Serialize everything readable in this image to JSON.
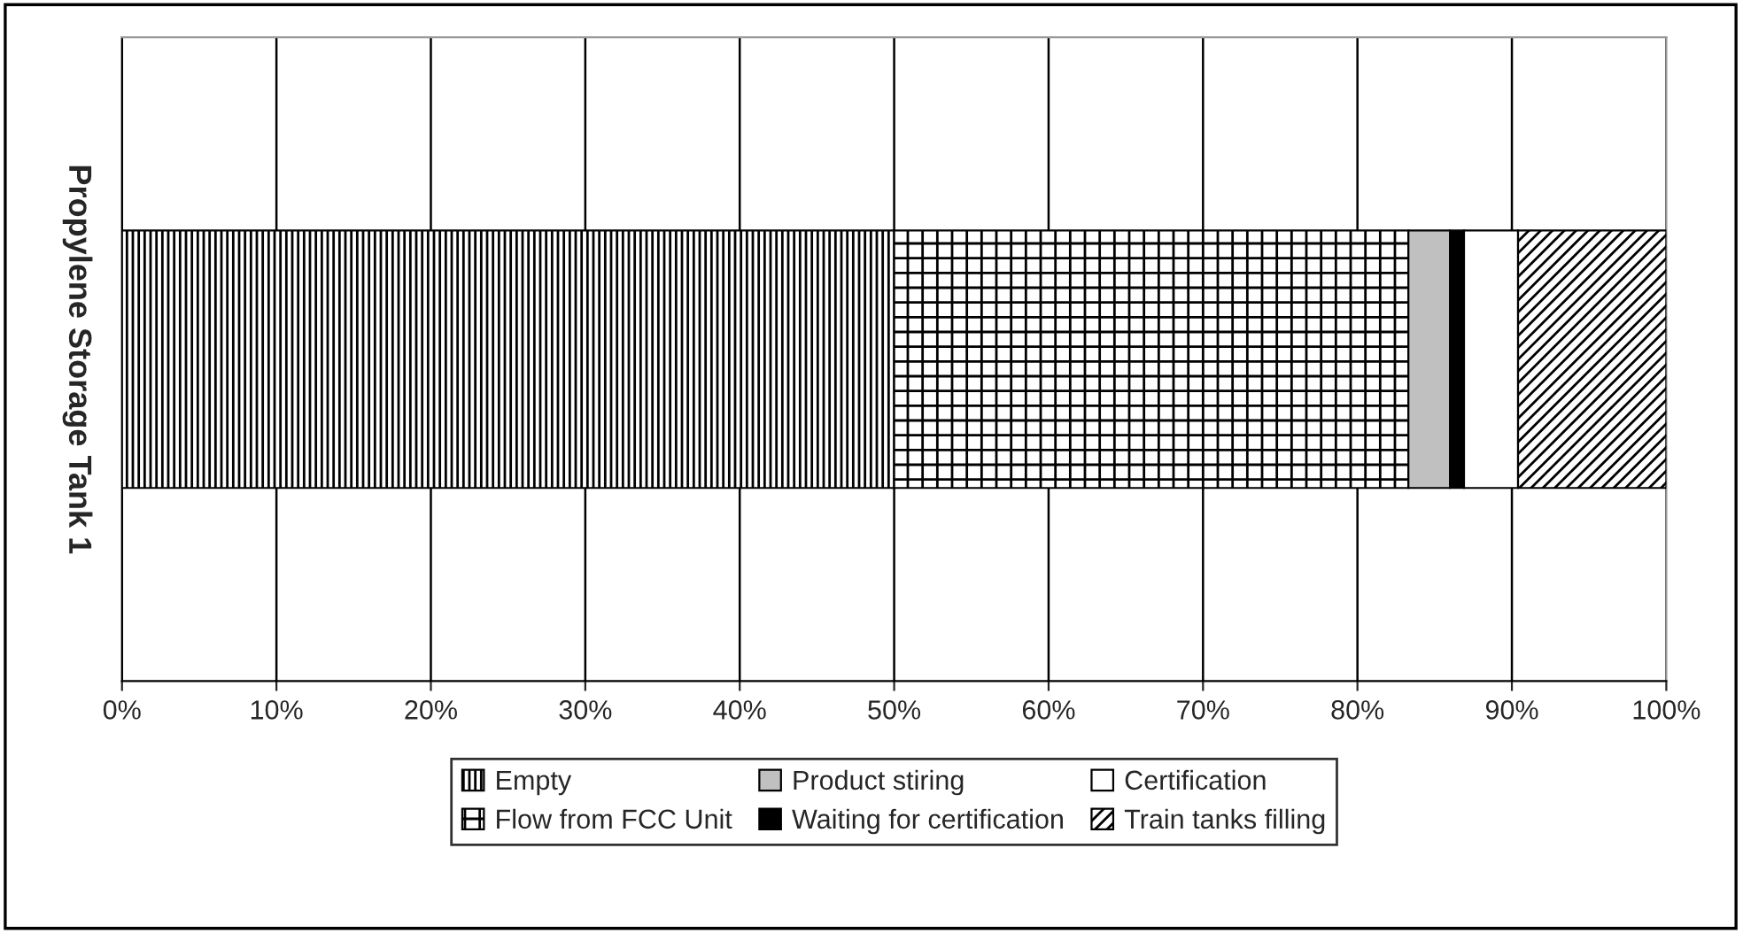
{
  "chart_data": {
    "type": "bar",
    "orientation": "horizontal",
    "stacked": true,
    "categories": [
      "Propylene Storage Tank 1"
    ],
    "series": [
      {
        "name": "Empty",
        "color": "#000000",
        "values": [
          50.0
        ]
      },
      {
        "name": "Flow from FCC Unit",
        "color": "#000000",
        "values": [
          33.3
        ]
      },
      {
        "name": "Product stiring",
        "color": "#c0c0c0",
        "values": [
          2.7
        ]
      },
      {
        "name": "Waiting for certification",
        "color": "#000000",
        "values": [
          0.9
        ]
      },
      {
        "name": "Certification",
        "color": "#ffffff",
        "values": [
          3.5
        ]
      },
      {
        "name": "Train tanks filling",
        "color": "#000000",
        "values": [
          9.6
        ]
      }
    ],
    "xlim": [
      0,
      100
    ],
    "xticks": [
      {
        "value": 0,
        "label": "0%"
      },
      {
        "value": 10,
        "label": "10%"
      },
      {
        "value": 20,
        "label": "20%"
      },
      {
        "value": 30,
        "label": "30%"
      },
      {
        "value": 40,
        "label": "40%"
      },
      {
        "value": 50,
        "label": "50%"
      },
      {
        "value": 60,
        "label": "60%"
      },
      {
        "value": 70,
        "label": "70%"
      },
      {
        "value": 80,
        "label": "80%"
      },
      {
        "value": 90,
        "label": "90%"
      },
      {
        "value": 100,
        "label": "100%"
      }
    ],
    "grid": "x",
    "legend": "bottom"
  }
}
